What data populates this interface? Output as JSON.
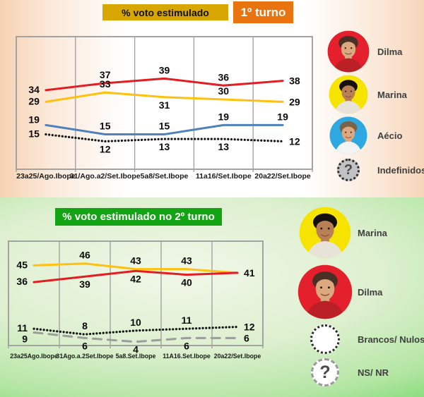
{
  "chart_data": [
    {
      "type": "line",
      "title": "% voto estimulado",
      "round": "1º turno",
      "categories": [
        "23a25/Ago.Ibope",
        "31/Ago.a2/Set.Ibope",
        "5a8/Set.Ibope",
        "11a16/Set.Ibope",
        "20a22/Set.Ibope"
      ],
      "series": [
        {
          "name": "Dilma",
          "color": "#e21e22",
          "style": "solid",
          "values": [
            34,
            37,
            39,
            36,
            38
          ],
          "label_sides": [
            "left",
            "above",
            "above",
            "above",
            "right"
          ]
        },
        {
          "name": "Marina",
          "color": "#ffc10d",
          "style": "solid",
          "values": [
            29,
            33,
            31,
            30,
            29
          ],
          "label_sides": [
            "left",
            "above",
            "below",
            "above",
            "right"
          ]
        },
        {
          "name": "Aécio",
          "color": "#4f81bd",
          "style": "solid",
          "values": [
            19,
            15,
            15,
            19,
            19
          ],
          "label_sides": [
            "left-high",
            "above",
            "above",
            "above",
            "above"
          ]
        },
        {
          "name": "Indefinidos",
          "color": "#141414",
          "style": "dotted",
          "values": [
            15,
            12,
            13,
            13,
            12
          ],
          "label_sides": [
            "left",
            "below",
            "below",
            "below",
            "right"
          ]
        }
      ],
      "ylim": [
        0,
        57
      ],
      "grid": "vertical-only",
      "legend_position": "right",
      "legend": [
        {
          "label": "Dilma",
          "icon": "dilma-avatar",
          "circle_color": "#e4202c"
        },
        {
          "label": "Marina",
          "icon": "marina-avatar",
          "circle_color": "#f6e400"
        },
        {
          "label": "Aécio",
          "icon": "aecio-avatar",
          "circle_color": "#2fa8e1"
        },
        {
          "label": "Indefinidos",
          "icon": "question-mark-icon",
          "fill": "#c2c2c2",
          "border": "dotted",
          "border_color": "#2b2b2b",
          "glyph": "?"
        }
      ]
    },
    {
      "type": "line",
      "title": "% voto estimulado no 2º turno",
      "categories": [
        "23a25Ago.Ibope",
        "31Ago.a.2Set.Ibope",
        "5a8.Set.Ibope",
        "11A16.Set.Ibope",
        "20a22/Set.Ibope"
      ],
      "series": [
        {
          "name": "Marina",
          "color": "#ffc10d",
          "style": "solid",
          "values": [
            45,
            46,
            43,
            43,
            41
          ],
          "label_sides": [
            "left",
            "above",
            "above",
            "above",
            "right"
          ]
        },
        {
          "name": "Dilma",
          "color": "#e21e22",
          "style": "solid",
          "values": [
            36,
            39,
            42,
            40,
            41
          ],
          "label_sides": [
            "left",
            "below",
            "below",
            "below",
            null
          ]
        },
        {
          "name": "NS/ NR",
          "color": "#141414",
          "style": "dotted",
          "values": [
            11,
            8,
            10,
            11,
            12
          ],
          "label_sides": [
            "left",
            "above",
            "above",
            "above",
            "right"
          ]
        },
        {
          "name": "Brancos/ Nulos",
          "color": "#9c9c9c",
          "style": "dashed",
          "values": [
            9,
            6,
            4,
            6,
            6
          ],
          "label_sides": [
            "left-low",
            "below",
            "below",
            "below",
            "right"
          ]
        }
      ],
      "ylim": [
        2,
        58
      ],
      "grid": "vertical-only",
      "legend_position": "right",
      "legend": [
        {
          "label": "Marina",
          "icon": "marina-avatar",
          "circle_color": "#f6e400"
        },
        {
          "label": "Dilma",
          "icon": "dilma-avatar",
          "circle_color": "#e4202c"
        },
        {
          "label": "Brancos/ Nulos",
          "icon": "blank-circle-icon",
          "fill": "#ffffff",
          "border": "dotted",
          "border_color": "#2b2b2b",
          "glyph": ""
        },
        {
          "label": "NS/ NR",
          "icon": "question-mark-icon",
          "fill": "#ffffff",
          "border": "dashed",
          "border_color": "#9a9a9a",
          "glyph": "?"
        }
      ]
    }
  ]
}
